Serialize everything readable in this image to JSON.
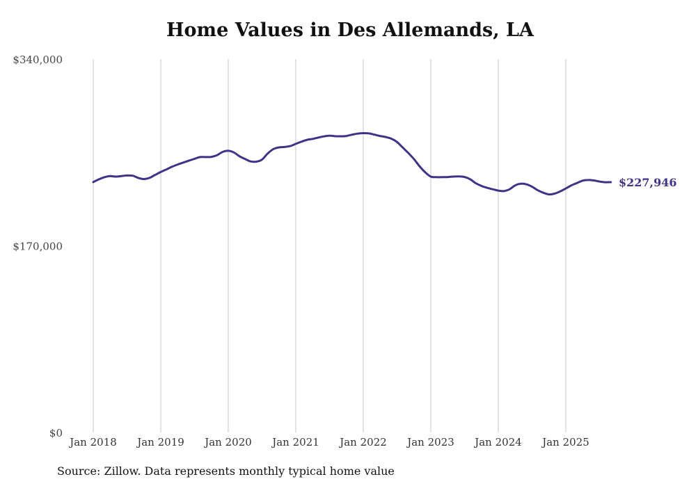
{
  "chart_data": {
    "type": "line",
    "title": "Home Values in Des Allemands, LA",
    "xlabel": "",
    "ylabel": "",
    "ylim": [
      0,
      340000
    ],
    "x_range_months": [
      0,
      93
    ],
    "y_ticks": [
      {
        "value": 0,
        "label": "$0"
      },
      {
        "value": 170000,
        "label": "$170,000"
      },
      {
        "value": 340000,
        "label": "$340,000"
      }
    ],
    "x_ticks": [
      {
        "month": 0,
        "label": "Jan 2018"
      },
      {
        "month": 12,
        "label": "Jan 2019"
      },
      {
        "month": 24,
        "label": "Jan 2020"
      },
      {
        "month": 36,
        "label": "Jan 2021"
      },
      {
        "month": 48,
        "label": "Jan 2022"
      },
      {
        "month": 60,
        "label": "Jan 2023"
      },
      {
        "month": 72,
        "label": "Jan 2024"
      },
      {
        "month": 84,
        "label": "Jan 2025"
      }
    ],
    "grid": "vertical",
    "series": [
      {
        "name": "Typical home value",
        "color": "#3d3488",
        "end_label": "$227,946",
        "points": [
          [
            0,
            228000
          ],
          [
            1,
            230500
          ],
          [
            2,
            232500
          ],
          [
            3,
            233500
          ],
          [
            4,
            233000
          ],
          [
            5,
            233500
          ],
          [
            6,
            234000
          ],
          [
            7,
            233800
          ],
          [
            8,
            231800
          ],
          [
            9,
            230800
          ],
          [
            10,
            231800
          ],
          [
            11,
            234500
          ],
          [
            12,
            237200
          ],
          [
            13,
            239500
          ],
          [
            14,
            242000
          ],
          [
            15,
            244000
          ],
          [
            16,
            245800
          ],
          [
            17,
            247500
          ],
          [
            18,
            249200
          ],
          [
            19,
            250800
          ],
          [
            20,
            250800
          ],
          [
            21,
            251000
          ],
          [
            22,
            252500
          ],
          [
            23,
            255500
          ],
          [
            24,
            256500
          ],
          [
            25,
            255000
          ],
          [
            26,
            251500
          ],
          [
            27,
            249000
          ],
          [
            28,
            246800
          ],
          [
            29,
            246600
          ],
          [
            30,
            248500
          ],
          [
            31,
            254000
          ],
          [
            32,
            258000
          ],
          [
            33,
            259600
          ],
          [
            34,
            260000
          ],
          [
            35,
            260800
          ],
          [
            36,
            262800
          ],
          [
            37,
            264800
          ],
          [
            38,
            266500
          ],
          [
            39,
            267300
          ],
          [
            40,
            268500
          ],
          [
            41,
            269600
          ],
          [
            42,
            270300
          ],
          [
            43,
            269800
          ],
          [
            44,
            269700
          ],
          [
            45,
            270000
          ],
          [
            46,
            271200
          ],
          [
            47,
            272100
          ],
          [
            48,
            272600
          ],
          [
            49,
            272300
          ],
          [
            50,
            271200
          ],
          [
            51,
            270000
          ],
          [
            52,
            269000
          ],
          [
            53,
            267500
          ],
          [
            54,
            264500
          ],
          [
            55,
            259500
          ],
          [
            56,
            254500
          ],
          [
            57,
            249000
          ],
          [
            58,
            242500
          ],
          [
            59,
            237000
          ],
          [
            60,
            233000
          ],
          [
            61,
            232500
          ],
          [
            62,
            232500
          ],
          [
            63,
            232600
          ],
          [
            64,
            233000
          ],
          [
            65,
            233100
          ],
          [
            66,
            232600
          ],
          [
            67,
            230600
          ],
          [
            68,
            227000
          ],
          [
            69,
            224500
          ],
          [
            70,
            222800
          ],
          [
            71,
            221500
          ],
          [
            72,
            220300
          ],
          [
            73,
            219800
          ],
          [
            74,
            221500
          ],
          [
            75,
            225000
          ],
          [
            76,
            226500
          ],
          [
            77,
            226000
          ],
          [
            78,
            223800
          ],
          [
            79,
            220600
          ],
          [
            80,
            218300
          ],
          [
            81,
            216800
          ],
          [
            82,
            217500
          ],
          [
            83,
            219500
          ],
          [
            84,
            222200
          ],
          [
            85,
            225000
          ],
          [
            86,
            227200
          ],
          [
            87,
            229300
          ],
          [
            88,
            229900
          ],
          [
            89,
            229500
          ],
          [
            90,
            228500
          ],
          [
            91,
            227900
          ],
          [
            92,
            227946
          ]
        ]
      }
    ]
  },
  "footer": {
    "source": "Source: Zillow. Data represents monthly typical home value"
  }
}
